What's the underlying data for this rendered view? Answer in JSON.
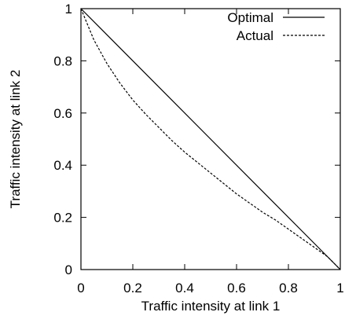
{
  "chart_data": {
    "type": "line",
    "title": "",
    "xlabel": "Traffic intensity at link 1",
    "ylabel": "Traffic intensity at link 2",
    "xlim": [
      0,
      1
    ],
    "ylim": [
      0,
      1
    ],
    "xticks": [
      "0",
      "0.2",
      "0.4",
      "0.6",
      "0.8",
      "1"
    ],
    "yticks": [
      "0",
      "0.2",
      "0.4",
      "0.6",
      "0.8",
      "1"
    ],
    "grid": false,
    "legend_position": "top-right",
    "series": [
      {
        "name": "Optimal",
        "style": "solid",
        "color": "#000000",
        "points": [
          [
            0,
            1
          ],
          [
            1,
            0
          ]
        ]
      },
      {
        "name": "Actual",
        "style": "dashed",
        "color": "#000000",
        "points": [
          [
            0,
            1
          ],
          [
            0.05,
            0.88
          ],
          [
            0.1,
            0.79
          ],
          [
            0.15,
            0.715
          ],
          [
            0.2,
            0.65
          ],
          [
            0.25,
            0.595
          ],
          [
            0.3,
            0.545
          ],
          [
            0.35,
            0.495
          ],
          [
            0.4,
            0.45
          ],
          [
            0.45,
            0.41
          ],
          [
            0.5,
            0.37
          ],
          [
            0.55,
            0.33
          ],
          [
            0.6,
            0.29
          ],
          [
            0.65,
            0.255
          ],
          [
            0.7,
            0.22
          ],
          [
            0.75,
            0.19
          ],
          [
            0.8,
            0.155
          ],
          [
            0.85,
            0.12
          ],
          [
            0.9,
            0.085
          ],
          [
            0.95,
            0.05
          ],
          [
            1,
            0
          ]
        ]
      }
    ]
  }
}
